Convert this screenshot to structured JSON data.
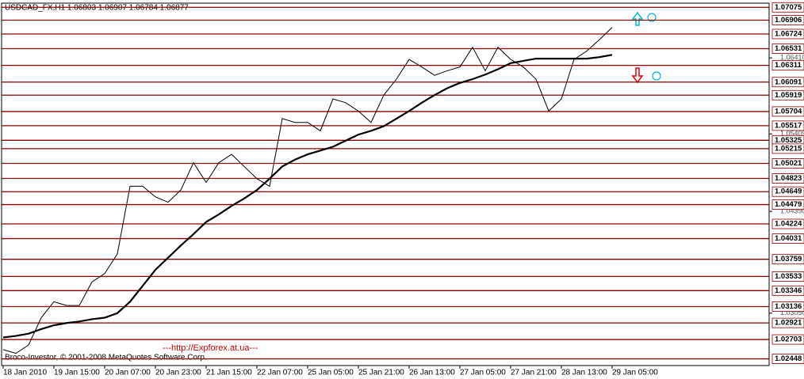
{
  "chart_data": {
    "type": "line",
    "title": "USDCAD_FX,H1  1.06803 1.06907 1.06784 1.06877",
    "credit": "Broco-Investor, © 2001-2008 MetaQuotes Software Corp.",
    "watermark": "---http://Expforex.at.ua---",
    "categories": [
      "18 Jan 2010",
      null,
      null,
      null,
      "19 Jan 15:00",
      null,
      null,
      null,
      "20 Jan 07:00",
      null,
      null,
      null,
      "20 Jan 23:00",
      null,
      null,
      null,
      "21 Jan 15:00",
      null,
      null,
      null,
      "22 Jan 07:00",
      null,
      null,
      null,
      "25 Jan 05:00",
      null,
      null,
      null,
      "25 Jan 21:00",
      null,
      null,
      null,
      "26 Jan 13:00",
      null,
      null,
      null,
      "27 Jan 05:00",
      null,
      null,
      null,
      "27 Jan 21:00",
      null,
      null,
      null,
      "28 Jan 13:00",
      null,
      null,
      null,
      "29 Jan 05:00"
    ],
    "series": [
      {
        "color": "#000000",
        "line_width": 1,
        "values": [
          1.0257,
          1.0252,
          1.0263,
          1.0299,
          1.032,
          1.0315,
          1.0315,
          1.0346,
          1.0357,
          1.0383,
          1.0472,
          1.0472,
          1.0458,
          1.0451,
          1.0467,
          1.0503,
          1.0477,
          1.0503,
          1.0514,
          1.0498,
          1.0482,
          1.0472,
          1.0561,
          1.0556,
          1.0556,
          1.0545,
          1.0587,
          1.0582,
          1.0571,
          1.0556,
          1.0592,
          1.0613,
          1.0639,
          1.0629,
          1.0618,
          1.0624,
          1.0629,
          1.0655,
          1.0624,
          1.0655,
          1.0639,
          1.0629,
          1.0613,
          1.0571,
          1.0587,
          1.0639,
          1.065,
          1.0665,
          1.0681
        ]
      },
      {
        "color": "#000000",
        "line_width": 2.2,
        "values": [
          1.0273,
          1.0275,
          1.0278,
          1.0284,
          1.0289,
          1.0292,
          1.0294,
          1.0297,
          1.0299,
          1.0305,
          1.032,
          1.0341,
          1.0362,
          1.0378,
          1.0394,
          1.0409,
          1.0425,
          1.0435,
          1.0446,
          1.0456,
          1.0467,
          1.0482,
          1.0498,
          1.0507,
          1.0514,
          1.0519,
          1.0524,
          1.0532,
          1.054,
          1.0545,
          1.0551,
          1.0561,
          1.0571,
          1.0582,
          1.0592,
          1.0601,
          1.0608,
          1.0613,
          1.0619,
          1.0626,
          1.0634,
          1.0637,
          1.064,
          1.064,
          1.064,
          1.064,
          1.064,
          1.0642,
          1.0645
        ]
      }
    ],
    "levels": {
      "color": "#8b0000",
      "values": [
        1.07075,
        1.06906,
        1.06724,
        1.06531,
        1.06311,
        1.06091,
        1.05919,
        1.05704,
        1.05517,
        1.05325,
        1.05215,
        1.05021,
        1.04823,
        1.04649,
        1.04479,
        1.04224,
        1.04031,
        1.03759,
        1.03533,
        1.03346,
        1.03136,
        1.02921,
        1.02703,
        1.02448
      ]
    },
    "ylim": [
      1.0236,
      1.0713
    ],
    "yticks": [
      {
        "value": 1.0641,
        "label": "1.06410"
      },
      1.05409,
      {
        "value": 1.0439,
        "label": "1.04390"
      },
      {
        "value": 1.0305,
        "label": "1.03050"
      }
    ]
  }
}
